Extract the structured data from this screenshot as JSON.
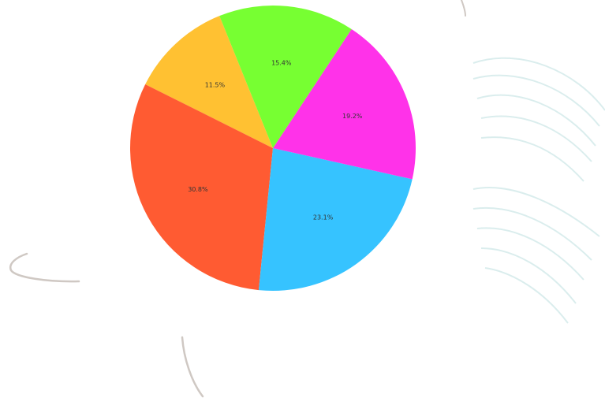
{
  "chart_data": {
    "type": "pie",
    "slices": [
      {
        "label": "11.5%",
        "value": 11.5,
        "color": "#FFC132"
      },
      {
        "label": "30.8%",
        "value": 30.8,
        "color": "#FF5B32"
      },
      {
        "label": "23.1%",
        "value": 23.1,
        "color": "#36C3FF"
      },
      {
        "label": "19.2%",
        "value": 19.2,
        "color": "#FF32E9"
      },
      {
        "label": "15.4%",
        "value": 15.4,
        "color": "#77FF32"
      }
    ],
    "start_angle_deg": 112,
    "direction": "counterclockwise",
    "legend": "none"
  },
  "background": {
    "color": "#ffffff",
    "decoration": [
      "curved-stroke",
      "palm-frond-watermark"
    ]
  }
}
